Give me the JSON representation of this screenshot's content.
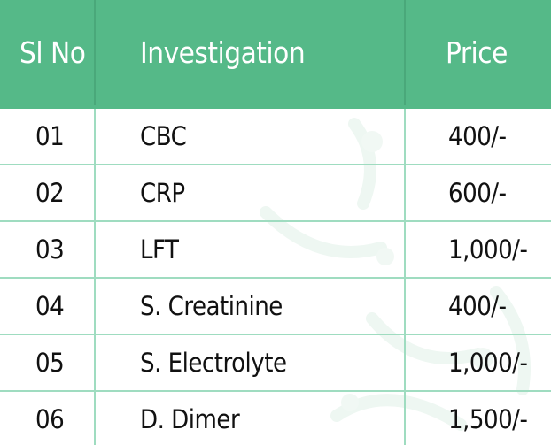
{
  "table": {
    "headers": {
      "sl_no": "Sl No",
      "investigation": "Investigation",
      "price": "Price"
    },
    "rows": [
      {
        "sl_no": "01",
        "investigation": "CBC",
        "price": "400/-"
      },
      {
        "sl_no": "02",
        "investigation": "CRP",
        "price": "600/-"
      },
      {
        "sl_no": "03",
        "investigation": "LFT",
        "price": "1,000/-"
      },
      {
        "sl_no": "04",
        "investigation": "S. Creatinine",
        "price": "400/-"
      },
      {
        "sl_no": "05",
        "investigation": "S. Electrolyte",
        "price": "1,000/-"
      },
      {
        "sl_no": "06",
        "investigation": "D. Dimer",
        "price": "1,500/-"
      }
    ]
  },
  "colors": {
    "header_bg": "#55b988",
    "header_text": "#ffffff",
    "grid_line": "#9fdcc0",
    "body_text": "#111111"
  }
}
